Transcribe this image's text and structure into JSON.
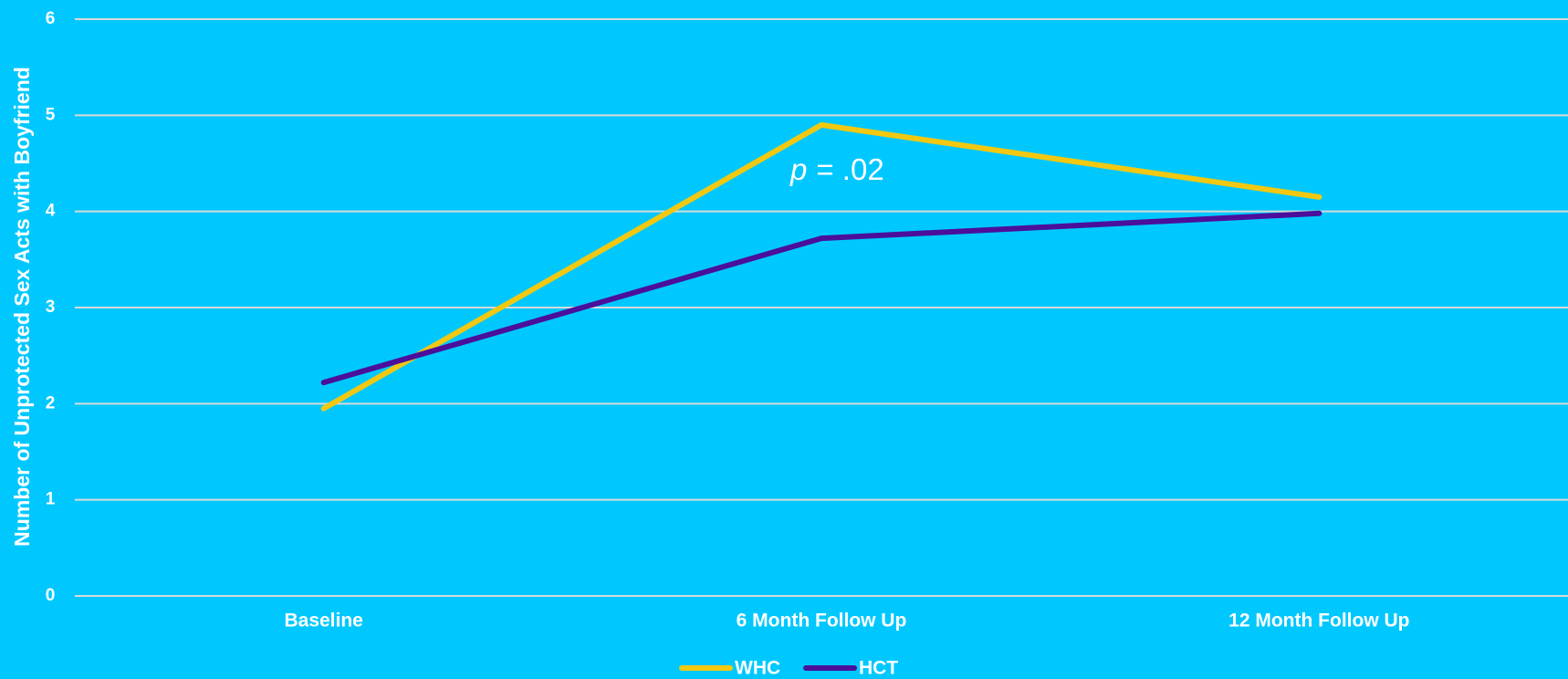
{
  "chart_data": {
    "type": "line",
    "y_label": "Number of Unprotected Sex Acts with Boyfriend",
    "categories": [
      "Baseline",
      "6 Month Follow Up",
      "12 Month Follow Up"
    ],
    "series": [
      {
        "name": "WHC",
        "color": "#f2c811",
        "values": [
          1.95,
          4.9,
          4.15
        ]
      },
      {
        "name": "HCT",
        "color": "#4b0f9b",
        "values": [
          2.22,
          3.72,
          3.98
        ]
      }
    ],
    "annotation": [
      "p",
      "= .02"
    ],
    "ylim": [
      0,
      6
    ],
    "yticks": [
      0,
      1,
      2,
      3,
      4,
      5,
      6
    ],
    "grid": true,
    "legend": "bottom"
  }
}
